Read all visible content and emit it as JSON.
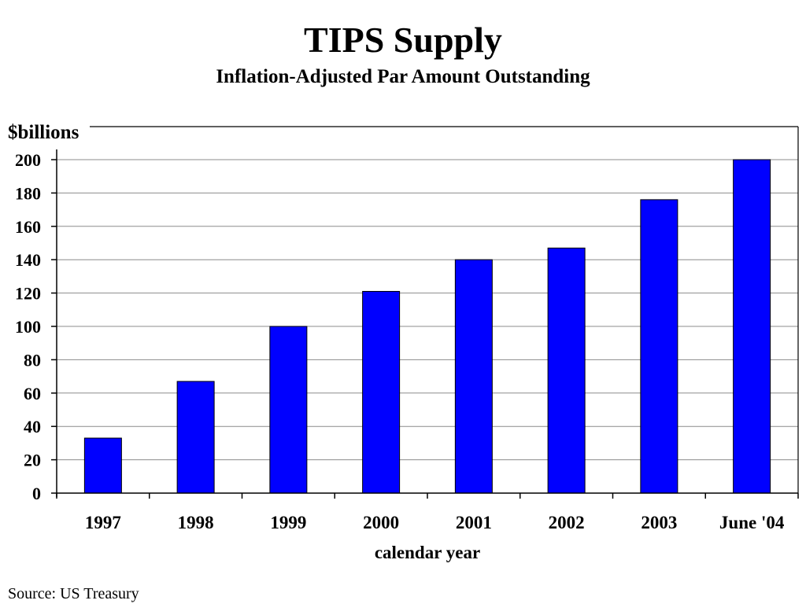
{
  "chart_data": {
    "type": "bar",
    "title": "TIPS Supply",
    "subtitle": "Inflation-Adjusted Par Amount Outstanding",
    "ylabel": "$billions",
    "xlabel": "calendar year",
    "categories": [
      "1997",
      "1998",
      "1999",
      "2000",
      "2001",
      "2002",
      "2003",
      "June '04"
    ],
    "values": [
      33,
      67,
      100,
      121,
      140,
      147,
      176,
      200
    ],
    "ylim": [
      0,
      200
    ],
    "yticks": [
      0,
      20,
      40,
      60,
      80,
      100,
      120,
      140,
      160,
      180,
      200
    ],
    "grid": true,
    "legend": "none",
    "bar_color": "#0000FF"
  },
  "source": "Source: US Treasury"
}
